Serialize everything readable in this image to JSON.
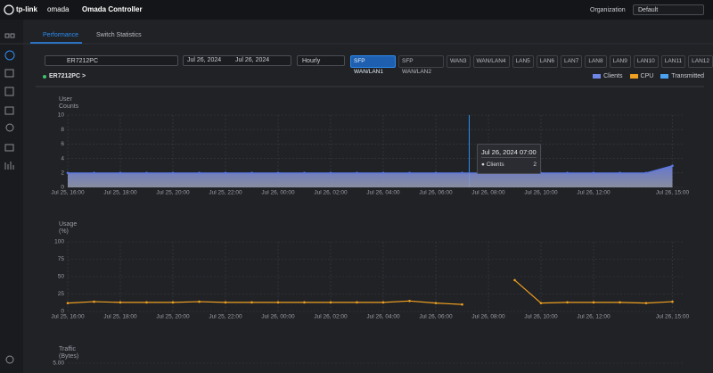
{
  "header": {
    "brand": "tp-link",
    "product": "omada",
    "title": "Omada Controller",
    "org_label": "Organization",
    "org_value": "Default"
  },
  "tabs": [
    "Performance",
    "Switch Statistics"
  ],
  "filters": {
    "device": "ER7212PC",
    "date_from": "Jul 26, 2024",
    "date_to": "Jul 26, 2024",
    "interval": "Hourly"
  },
  "ports": [
    "SFP WAN/LAN1",
    "SFP WAN/LAN2",
    "WAN3",
    "WAN/LAN4",
    "LAN5",
    "LAN6",
    "LAN7",
    "LAN8",
    "LAN9",
    "LAN10",
    "LAN11",
    "LAN12"
  ],
  "active_port": 0,
  "device_link": "ER7212PC >",
  "legend": [
    {
      "name": "Clients",
      "color": "#6f86e8"
    },
    {
      "name": "CPU",
      "color": "#f0a020"
    },
    {
      "name": "Transmitted",
      "color": "#4aa3f0"
    }
  ],
  "tooltip": {
    "title": "Jul 26, 2024 07:00",
    "label": "Clients",
    "value": 2
  },
  "chart_data": [
    {
      "type": "area",
      "y_label": "User Counts",
      "categories": [
        "Jul 25, 16:00",
        null,
        "Jul 25, 18:00",
        null,
        "Jul 25, 20:00",
        null,
        "Jul 25, 22:00",
        null,
        "Jul 26, 00:00",
        null,
        "Jul 26, 02:00",
        null,
        "Jul 26, 04:00",
        null,
        "Jul 26, 06:00",
        null,
        "Jul 26, 08:00",
        null,
        "Jul 26, 10:00",
        null,
        "Jul 26, 12:00",
        null,
        null,
        "Jul 26, 15:00"
      ],
      "series": [
        {
          "name": "Clients",
          "color": "#5a78e6",
          "values": [
            2,
            2,
            2,
            2,
            2,
            2,
            2,
            2,
            2,
            2,
            2,
            2,
            2,
            2,
            2,
            2,
            2,
            2,
            2,
            2,
            2,
            2,
            2,
            3
          ]
        }
      ],
      "ylim": [
        0,
        10
      ],
      "yticks": [
        0,
        2,
        4,
        6,
        8,
        10
      ],
      "grid": true
    },
    {
      "type": "line",
      "y_label": "Usage (%)",
      "categories": [
        "Jul 25, 16:00",
        null,
        "Jul 25, 18:00",
        null,
        "Jul 25, 20:00",
        null,
        "Jul 25, 22:00",
        null,
        "Jul 26, 00:00",
        null,
        "Jul 26, 02:00",
        null,
        "Jul 26, 04:00",
        null,
        "Jul 26, 06:00",
        null,
        "Jul 26, 08:00",
        null,
        "Jul 26, 10:00",
        null,
        "Jul 26, 12:00",
        null,
        null,
        "Jul 26, 15:00"
      ],
      "series": [
        {
          "name": "CPU",
          "color": "#f0a020",
          "values": [
            12,
            14,
            13,
            13,
            13,
            14,
            13,
            13,
            13,
            13,
            13,
            13,
            13,
            15,
            12,
            10,
            null,
            45,
            12,
            13,
            13,
            13,
            12,
            14
          ]
        }
      ],
      "ylim": [
        0,
        100
      ],
      "yticks": [
        0,
        25,
        50,
        75,
        100
      ],
      "grid": true
    },
    {
      "type": "line",
      "y_label": "Traffic (Bytes)",
      "ylim": [
        0,
        5
      ],
      "yticks": [
        {
          "value": 5,
          "label": "5.00"
        }
      ],
      "grid": true
    }
  ]
}
